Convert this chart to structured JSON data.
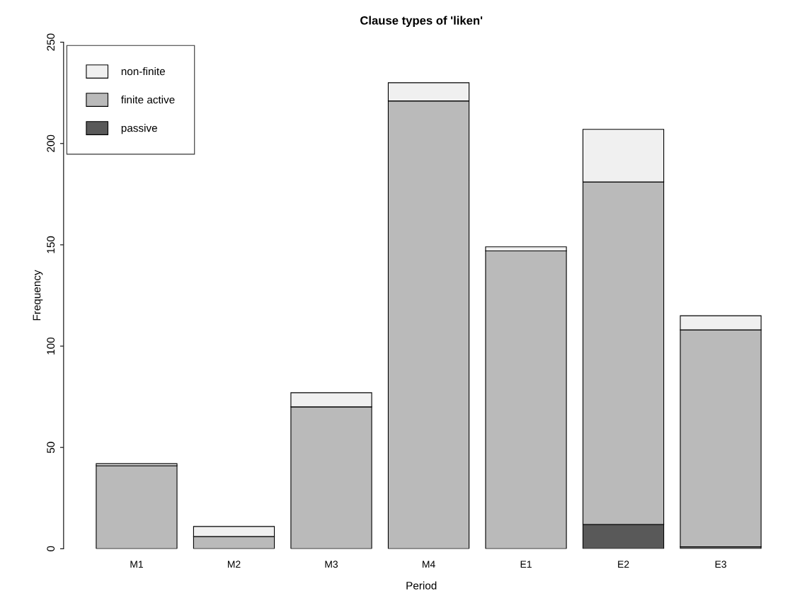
{
  "chart_data": {
    "type": "bar",
    "title": "Clause types of 'liken'",
    "xlabel": "Period",
    "ylabel": "Frequency",
    "categories": [
      "M1",
      "M2",
      "M3",
      "M4",
      "E1",
      "E2",
      "E3"
    ],
    "stacked": true,
    "series": [
      {
        "name": "passive",
        "color": "#595959",
        "values": [
          0,
          0,
          0,
          0,
          0,
          12,
          1
        ]
      },
      {
        "name": "finite active",
        "color": "#bababa",
        "values": [
          41,
          6,
          70,
          221,
          147,
          169,
          107
        ]
      },
      {
        "name": "non-finite",
        "color": "#f0f0f0",
        "values": [
          1,
          5,
          7,
          9,
          2,
          26,
          7
        ]
      }
    ],
    "ylim": [
      0,
      250
    ],
    "yticks": [
      0,
      50,
      100,
      150,
      200,
      250
    ],
    "grid": false,
    "legend": "top left"
  }
}
